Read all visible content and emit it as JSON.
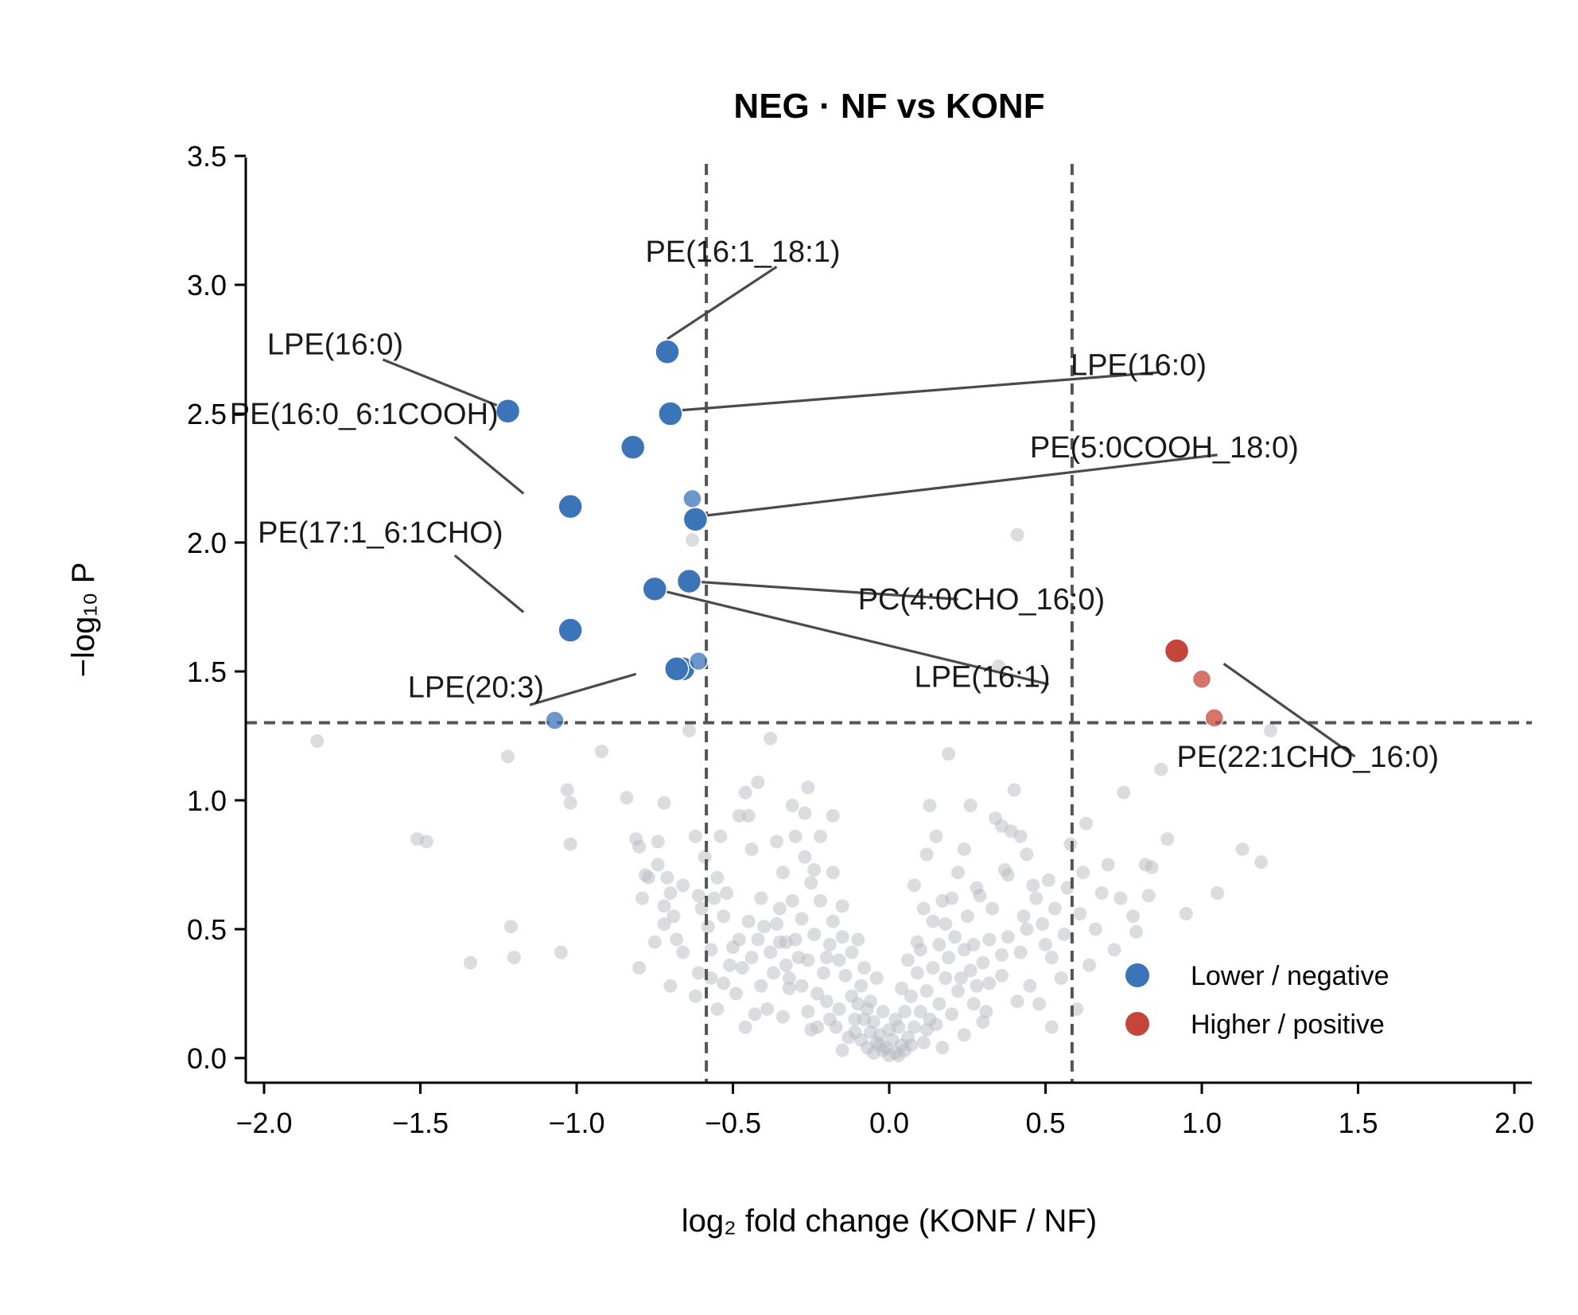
{
  "chart_data": {
    "type": "scatter",
    "title": "NEG · NF vs KONF",
    "xlabel": "log₂ fold change (KONF / NF)",
    "ylabel": "−log₁₀ P",
    "xlim": [
      -2.05,
      2.05
    ],
    "ylim": [
      -0.1,
      3.5
    ],
    "xticks": [
      "−2.0",
      "−1.5",
      "−1.0",
      "−0.5",
      "0.0",
      "0.5",
      "1.0",
      "1.5",
      "2.0"
    ],
    "yticks": [
      "0.0",
      "0.5",
      "1.0",
      "1.5",
      "2.0",
      "2.5",
      "3.0",
      "3.5"
    ],
    "thresholds": {
      "x": [
        -0.585,
        0.585
      ],
      "y": 1.301
    },
    "grid": false,
    "legend_position": "lower-right",
    "colors": {
      "negative": "#3b74b8",
      "positive": "#c6453a",
      "background": "#b6bac2",
      "guide": "#555555"
    },
    "legend": [
      {
        "label": "Lower / negative",
        "color": "#3b74b8"
      },
      {
        "label": "Higher / positive",
        "color": "#c6453a"
      }
    ],
    "significant_points": [
      {
        "x": -0.71,
        "y": 2.74,
        "group": "negative"
      },
      {
        "x": -0.7,
        "y": 2.5,
        "group": "negative"
      },
      {
        "x": -1.22,
        "y": 2.51,
        "group": "negative"
      },
      {
        "x": -0.82,
        "y": 2.37,
        "group": "negative"
      },
      {
        "x": -1.02,
        "y": 2.14,
        "group": "negative"
      },
      {
        "x": -0.62,
        "y": 2.09,
        "group": "negative"
      },
      {
        "x": -0.63,
        "y": 2.17,
        "group": "negative"
      },
      {
        "x": -0.64,
        "y": 1.85,
        "group": "negative"
      },
      {
        "x": -0.75,
        "y": 1.82,
        "group": "negative"
      },
      {
        "x": -1.02,
        "y": 1.66,
        "group": "negative"
      },
      {
        "x": -0.66,
        "y": 1.51,
        "group": "negative"
      },
      {
        "x": -0.68,
        "y": 1.51,
        "group": "negative"
      },
      {
        "x": -0.61,
        "y": 1.54,
        "group": "negative"
      },
      {
        "x": -1.07,
        "y": 1.31,
        "group": "negative"
      },
      {
        "x": 0.92,
        "y": 1.58,
        "group": "positive"
      },
      {
        "x": 1.0,
        "y": 1.47,
        "group": "positive"
      },
      {
        "x": 1.04,
        "y": 1.32,
        "group": "positive"
      }
    ],
    "annotations": [
      {
        "label": "PE(16:1_18:1)",
        "text_x": -0.78,
        "text_y": 3.09,
        "line": [
          [
            -0.36,
            3.07
          ],
          [
            -0.71,
            2.79
          ]
        ]
      },
      {
        "label": "LPE(16:0)",
        "text_x": -1.99,
        "text_y": 2.73,
        "line": [
          [
            -1.62,
            2.71
          ],
          [
            -1.23,
            2.52
          ]
        ]
      },
      {
        "label": "LPE(16:0)",
        "text_x": 0.58,
        "text_y": 2.65,
        "line": [
          [
            0.86,
            2.66
          ],
          [
            -0.7,
            2.51
          ]
        ]
      },
      {
        "label": "PE(16:0_6:1COOH)",
        "text_x": -2.11,
        "text_y": 2.46,
        "line": [
          [
            -1.39,
            2.41
          ],
          [
            -1.17,
            2.19
          ]
        ]
      },
      {
        "label": "PE(5:0COOH_18:0)",
        "text_x": 0.45,
        "text_y": 2.33,
        "line": [
          [
            1.05,
            2.34
          ],
          [
            -0.62,
            2.1
          ]
        ]
      },
      {
        "label": "PE(17:1_6:1CHO)",
        "text_x": -2.02,
        "text_y": 2.0,
        "line": [
          [
            -1.39,
            1.95
          ],
          [
            -1.17,
            1.73
          ]
        ]
      },
      {
        "label": "PC(4:0CHO_16:0)",
        "text_x": -0.1,
        "text_y": 1.74,
        "line": [
          [
            0.22,
            1.78
          ],
          [
            -0.64,
            1.85
          ]
        ]
      },
      {
        "label": "LPE(20:3)",
        "text_x": -1.54,
        "text_y": 1.4,
        "line": [
          [
            -1.15,
            1.37
          ],
          [
            -0.81,
            1.49
          ]
        ]
      },
      {
        "label": "LPE(16:1)",
        "text_x": 0.08,
        "text_y": 1.44,
        "line": [
          [
            0.51,
            1.45
          ],
          [
            -0.75,
            1.82
          ]
        ]
      },
      {
        "label": "PE(22:1CHO_16:0)",
        "text_x": 0.92,
        "text_y": 1.13,
        "line": [
          [
            1.49,
            1.17
          ],
          [
            1.07,
            1.53
          ]
        ]
      }
    ],
    "background_points": [
      [
        -0.63,
        2.01
      ],
      [
        0.41,
        2.03
      ],
      [
        -1.83,
        1.23
      ],
      [
        -1.51,
        0.85
      ],
      [
        -1.48,
        0.84
      ],
      [
        -1.22,
        1.17
      ],
      [
        -1.21,
        0.51
      ],
      [
        -1.2,
        0.39
      ],
      [
        -1.34,
        0.37
      ],
      [
        -1.05,
        0.41
      ],
      [
        -1.03,
        1.04
      ],
      [
        -1.02,
        0.99
      ],
      [
        -1.02,
        0.83
      ],
      [
        -0.92,
        1.19
      ],
      [
        -0.84,
        1.01
      ],
      [
        -0.81,
        0.85
      ],
      [
        -0.8,
        0.82
      ],
      [
        -0.8,
        0.35
      ],
      [
        -0.77,
        0.7
      ],
      [
        -0.74,
        0.84
      ],
      [
        -0.72,
        0.99
      ],
      [
        -0.72,
        0.52
      ],
      [
        -0.74,
        0.75
      ],
      [
        -0.78,
        0.71
      ],
      [
        -0.71,
        0.7
      ],
      [
        -0.7,
        0.64
      ],
      [
        -0.68,
        0.46
      ],
      [
        -0.64,
        1.27
      ],
      [
        -0.62,
        0.86
      ],
      [
        -0.61,
        0.63
      ],
      [
        -0.59,
        0.78
      ],
      [
        -0.58,
        0.51
      ],
      [
        -0.57,
        0.31
      ],
      [
        -0.55,
        0.7
      ],
      [
        -0.52,
        0.64
      ],
      [
        -0.5,
        0.43
      ],
      [
        -0.48,
        0.94
      ],
      [
        -0.46,
        1.03
      ],
      [
        -0.44,
        0.81
      ],
      [
        -0.42,
        1.07
      ],
      [
        -0.38,
        1.24
      ],
      [
        -0.36,
        0.84
      ],
      [
        -0.35,
        0.45
      ],
      [
        -0.33,
        0.36
      ],
      [
        -0.32,
        0.27
      ],
      [
        -0.3,
        0.46
      ],
      [
        -0.28,
        0.54
      ],
      [
        -0.26,
        1.05
      ],
      [
        -0.24,
        0.73
      ],
      [
        -0.22,
        0.61
      ],
      [
        -0.2,
        0.39
      ],
      [
        -0.18,
        0.53
      ],
      [
        -0.16,
        0.38
      ],
      [
        -0.14,
        0.32
      ],
      [
        -0.12,
        0.24
      ],
      [
        -0.1,
        0.21
      ],
      [
        -0.08,
        0.15
      ],
      [
        -0.06,
        0.1
      ],
      [
        -0.04,
        0.06
      ],
      [
        -0.02,
        0.03
      ],
      [
        0.0,
        0.01
      ],
      [
        0.02,
        0.02
      ],
      [
        0.04,
        0.05
      ],
      [
        0.06,
        0.08
      ],
      [
        0.08,
        0.12
      ],
      [
        0.1,
        0.18
      ],
      [
        0.12,
        0.26
      ],
      [
        0.14,
        0.35
      ],
      [
        0.16,
        0.44
      ],
      [
        0.18,
        0.52
      ],
      [
        0.2,
        0.62
      ],
      [
        0.22,
        0.72
      ],
      [
        0.24,
        0.81
      ],
      [
        0.26,
        0.34
      ],
      [
        0.28,
        0.28
      ],
      [
        0.3,
        0.37
      ],
      [
        0.32,
        0.46
      ],
      [
        0.34,
        0.93
      ],
      [
        0.35,
        1.52
      ],
      [
        0.36,
        0.9
      ],
      [
        0.38,
        0.71
      ],
      [
        0.4,
        1.04
      ],
      [
        0.44,
        0.79
      ],
      [
        0.46,
        0.67
      ],
      [
        0.49,
        0.52
      ],
      [
        0.52,
        0.39
      ],
      [
        0.56,
        0.48
      ],
      [
        0.61,
        0.56
      ],
      [
        0.66,
        0.5
      ],
      [
        0.7,
        0.75
      ],
      [
        0.72,
        0.42
      ],
      [
        0.75,
        1.03
      ],
      [
        0.78,
        0.55
      ],
      [
        0.8,
        0.34
      ],
      [
        0.82,
        0.75
      ],
      [
        0.84,
        0.74
      ],
      [
        0.87,
        1.12
      ],
      [
        0.89,
        0.85
      ],
      [
        0.95,
        0.56
      ],
      [
        1.05,
        0.64
      ],
      [
        1.13,
        0.81
      ],
      [
        1.19,
        0.76
      ],
      [
        1.22,
        1.27
      ],
      [
        0.19,
        1.18
      ],
      [
        0.28,
        0.66
      ],
      [
        -0.18,
        0.94
      ],
      [
        -0.22,
        0.86
      ],
      [
        -0.27,
        0.78
      ],
      [
        -0.34,
        0.72
      ],
      [
        -0.41,
        0.62
      ],
      [
        -0.45,
        0.53
      ],
      [
        -0.3,
        0.86
      ],
      [
        -0.25,
        0.68
      ],
      [
        -0.15,
        0.59
      ],
      [
        0.08,
        0.67
      ],
      [
        0.12,
        0.79
      ],
      [
        0.15,
        0.86
      ],
      [
        0.11,
        0.58
      ],
      [
        0.18,
        0.31
      ],
      [
        0.22,
        0.26
      ],
      [
        0.24,
        0.42
      ],
      [
        0.27,
        0.21
      ],
      [
        0.31,
        0.18
      ],
      [
        0.36,
        0.32
      ],
      [
        0.42,
        0.41
      ],
      [
        0.45,
        0.28
      ],
      [
        0.48,
        0.21
      ],
      [
        0.52,
        0.12
      ],
      [
        -0.37,
        0.33
      ],
      [
        -0.39,
        0.19
      ],
      [
        -0.43,
        0.17
      ],
      [
        -0.46,
        0.12
      ],
      [
        -0.49,
        0.25
      ],
      [
        -0.53,
        0.29
      ],
      [
        -0.55,
        0.19
      ],
      [
        -0.28,
        0.28
      ],
      [
        -0.26,
        0.18
      ],
      [
        -0.23,
        0.12
      ],
      [
        -0.2,
        0.22
      ],
      [
        -0.17,
        0.12
      ],
      [
        -0.13,
        0.08
      ],
      [
        -0.11,
        0.15
      ],
      [
        -0.09,
        0.28
      ],
      [
        -0.07,
        0.19
      ],
      [
        -0.05,
        0.14
      ],
      [
        -0.03,
        0.09
      ],
      [
        0.01,
        0.07
      ],
      [
        0.03,
        0.12
      ],
      [
        0.05,
        0.18
      ],
      [
        0.07,
        0.24
      ],
      [
        0.09,
        0.33
      ],
      [
        0.13,
        0.15
      ],
      [
        0.16,
        0.21
      ],
      [
        0.19,
        0.39
      ],
      [
        0.21,
        0.47
      ],
      [
        -0.31,
        0.61
      ],
      [
        -0.35,
        0.58
      ],
      [
        -0.4,
        0.51
      ],
      [
        -0.24,
        0.48
      ],
      [
        -0.19,
        0.44
      ],
      [
        -0.21,
        0.33
      ],
      [
        -0.15,
        0.47
      ],
      [
        -0.12,
        0.41
      ],
      [
        -0.06,
        0.22
      ],
      [
        0.09,
        0.45
      ],
      [
        0.14,
        0.53
      ],
      [
        0.17,
        0.61
      ],
      [
        0.25,
        0.55
      ],
      [
        0.29,
        0.63
      ],
      [
        0.33,
        0.58
      ],
      [
        0.38,
        0.47
      ],
      [
        0.43,
        0.55
      ],
      [
        0.47,
        0.62
      ],
      [
        0.51,
        0.69
      ],
      [
        -0.29,
        0.39
      ],
      [
        -0.33,
        0.45
      ],
      [
        -0.36,
        0.52
      ],
      [
        -0.44,
        0.39
      ],
      [
        -0.48,
        0.46
      ],
      [
        -0.51,
        0.36
      ],
      [
        -0.57,
        0.42
      ],
      [
        -0.61,
        0.33
      ],
      [
        -0.66,
        0.41
      ],
      [
        -0.7,
        0.28
      ],
      [
        -0.62,
        0.24
      ],
      [
        -0.27,
        0.95
      ],
      [
        -0.31,
        0.98
      ],
      [
        0.13,
        0.98
      ],
      [
        0.26,
        0.98
      ],
      [
        0.39,
        0.88
      ],
      [
        -0.09,
        0.07
      ],
      [
        0.11,
        0.06
      ],
      [
        -0.15,
        0.03
      ],
      [
        0.17,
        0.04
      ],
      [
        -0.25,
        0.11
      ],
      [
        0.24,
        0.09
      ],
      [
        0.3,
        0.14
      ],
      [
        -0.34,
        0.16
      ],
      [
        -0.41,
        0.28
      ],
      [
        0.41,
        0.22
      ],
      [
        0.55,
        0.31
      ],
      [
        0.6,
        0.19
      ],
      [
        0.64,
        0.36
      ],
      [
        -0.01,
        0.04
      ],
      [
        0.0,
        0.11
      ],
      [
        -0.02,
        0.18
      ],
      [
        0.02,
        0.15
      ],
      [
        0.04,
        0.27
      ],
      [
        -0.04,
        0.31
      ],
      [
        0.06,
        0.38
      ],
      [
        -0.08,
        0.35
      ],
      [
        0.1,
        0.42
      ],
      [
        -0.1,
        0.46
      ],
      [
        0.37,
        0.73
      ],
      [
        0.42,
        0.86
      ],
      [
        -0.18,
        0.72
      ],
      [
        -0.05,
        0.02
      ],
      [
        0.05,
        0.03
      ],
      [
        -0.03,
        0.05
      ],
      [
        0.03,
        0.01
      ],
      [
        -0.07,
        0.04
      ],
      [
        0.07,
        0.05
      ],
      [
        -0.11,
        0.1
      ],
      [
        0.12,
        0.11
      ],
      [
        -0.16,
        0.19
      ],
      [
        0.15,
        0.13
      ],
      [
        -0.19,
        0.15
      ],
      [
        0.2,
        0.17
      ],
      [
        -0.23,
        0.25
      ],
      [
        0.23,
        0.31
      ],
      [
        -0.26,
        0.38
      ],
      [
        0.27,
        0.44
      ],
      [
        -0.32,
        0.31
      ],
      [
        0.32,
        0.29
      ],
      [
        -0.38,
        0.41
      ],
      [
        0.36,
        0.4
      ],
      [
        -0.42,
        0.46
      ],
      [
        0.44,
        0.5
      ],
      [
        -0.47,
        0.35
      ],
      [
        0.5,
        0.44
      ],
      [
        -0.53,
        0.55
      ],
      [
        0.53,
        0.58
      ],
      [
        -0.6,
        0.58
      ],
      [
        0.57,
        0.66
      ],
      [
        0.62,
        0.72
      ],
      [
        0.68,
        0.64
      ],
      [
        -0.66,
        0.67
      ],
      [
        -0.69,
        0.55
      ],
      [
        -0.72,
        0.59
      ],
      [
        -0.75,
        0.45
      ],
      [
        -0.79,
        0.62
      ],
      [
        0.74,
        0.62
      ],
      [
        0.79,
        0.49
      ],
      [
        0.83,
        0.63
      ],
      [
        -0.56,
        0.62
      ],
      [
        -0.54,
        0.86
      ],
      [
        0.58,
        0.83
      ],
      [
        0.63,
        0.91
      ],
      [
        -0.45,
        0.94
      ]
    ]
  }
}
